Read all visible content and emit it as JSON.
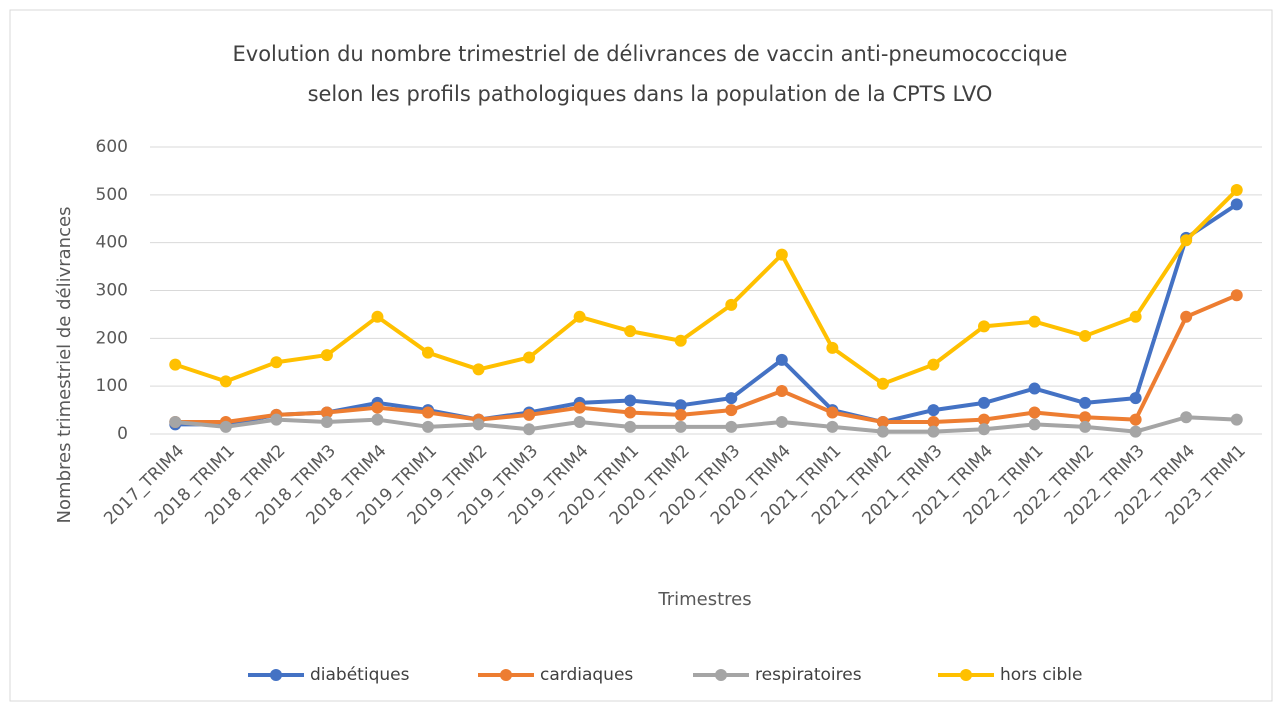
{
  "chart_data": {
    "type": "line",
    "title": "Evolution du nombre trimestriel de délivrances de vaccin anti-pneumococcique",
    "subtitle": "selon les profils pathologiques dans la population de la CPTS LVO",
    "x_label": "Trimestres",
    "y_label": "Nombres trimestriel de délivrances",
    "categories": [
      "2017_TRIM4",
      "2018_TRIM1",
      "2018_TRIM2",
      "2018_TRIM3",
      "2018_TRIM4",
      "2019_TRIM1",
      "2019_TRIM2",
      "2019_TRIM3",
      "2019_TRIM4",
      "2020_TRIM1",
      "2020_TRIM2",
      "2020_TRIM3",
      "2020_TRIM4",
      "2021_TRIM1",
      "2021_TRIM2",
      "2021_TRIM3",
      "2021_TRIM4",
      "2022_TRIM1",
      "2022_TRIM2",
      "2022_TRIM3",
      "2022_TRIM4",
      "2023_TRIM1"
    ],
    "series": [
      {
        "name": "diabétiques",
        "color": "#4472c4",
        "values": [
          20,
          20,
          40,
          45,
          65,
          50,
          30,
          45,
          65,
          70,
          60,
          75,
          155,
          50,
          25,
          50,
          65,
          95,
          65,
          75,
          410,
          480
        ]
      },
      {
        "name": "cardiaques",
        "color": "#ed7d31",
        "values": [
          25,
          25,
          40,
          45,
          55,
          45,
          30,
          40,
          55,
          45,
          40,
          50,
          90,
          45,
          25,
          25,
          30,
          45,
          35,
          30,
          245,
          290
        ]
      },
      {
        "name": "respiratoires",
        "color": "#a5a5a5",
        "values": [
          25,
          15,
          30,
          25,
          30,
          15,
          20,
          10,
          25,
          15,
          15,
          15,
          25,
          15,
          5,
          5,
          10,
          20,
          15,
          5,
          35,
          30
        ]
      },
      {
        "name": "hors cible",
        "color": "#ffc000",
        "values": [
          145,
          110,
          150,
          165,
          245,
          170,
          135,
          160,
          245,
          215,
          195,
          270,
          375,
          180,
          105,
          145,
          225,
          235,
          205,
          245,
          405,
          510
        ]
      }
    ],
    "ylim": [
      0,
      600
    ],
    "yticks": [
      0,
      100,
      200,
      300,
      400,
      500,
      600
    ],
    "grid": true,
    "legend": "bottom"
  }
}
